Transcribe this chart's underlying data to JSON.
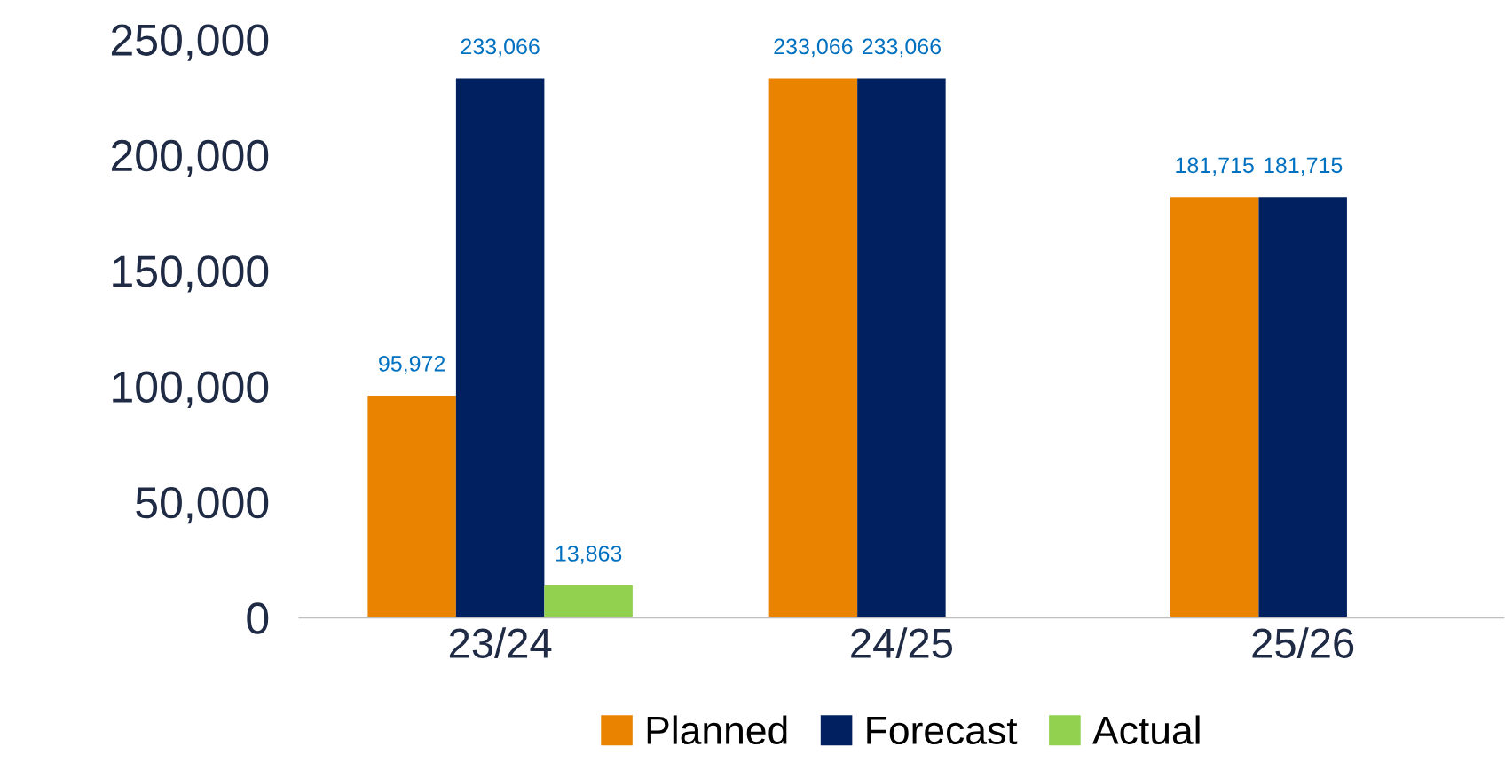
{
  "chart_data": {
    "type": "bar",
    "categories": [
      "23/24",
      "24/25",
      "25/26"
    ],
    "series": [
      {
        "name": "Planned",
        "color": "#e98300",
        "values": [
          95972,
          233066,
          181715
        ],
        "value_labels": [
          "95,972",
          "233,066",
          "181,715"
        ]
      },
      {
        "name": "Forecast",
        "color": "#002060",
        "values": [
          233066,
          233066,
          181715
        ],
        "value_labels": [
          "233,066",
          "233,066",
          "181,715"
        ]
      },
      {
        "name": "Actual",
        "color": "#92d050",
        "values": [
          13863,
          null,
          null
        ],
        "value_labels": [
          "13,863",
          null,
          null
        ]
      }
    ],
    "ylim": [
      0,
      250000
    ],
    "yticks": [
      {
        "value": 0,
        "label": "0"
      },
      {
        "value": 50000,
        "label": "50,000"
      },
      {
        "value": 100000,
        "label": "100,000"
      },
      {
        "value": 150000,
        "label": "150,000"
      },
      {
        "value": 200000,
        "label": "200,000"
      },
      {
        "value": 250000,
        "label": "250,000"
      }
    ],
    "grid": false,
    "legend": "bottom"
  }
}
